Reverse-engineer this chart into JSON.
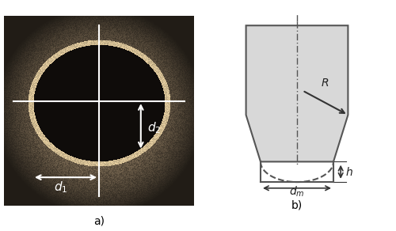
{
  "fig_width": 5.0,
  "fig_height": 2.92,
  "dpi": 100,
  "label_a": "a)",
  "label_b": "b)",
  "label_d1": "d$_1$",
  "label_d2": "d$_2$",
  "label_R": "R",
  "label_h": "h",
  "label_dm": "d$_m$",
  "bg_color": "#ffffff",
  "diagram_bg": "#e8e8e8",
  "diagram_border": "#555555",
  "diagram_line": "#555555",
  "arrow_color": "#333333",
  "photo_bg": "#8a7a6a"
}
